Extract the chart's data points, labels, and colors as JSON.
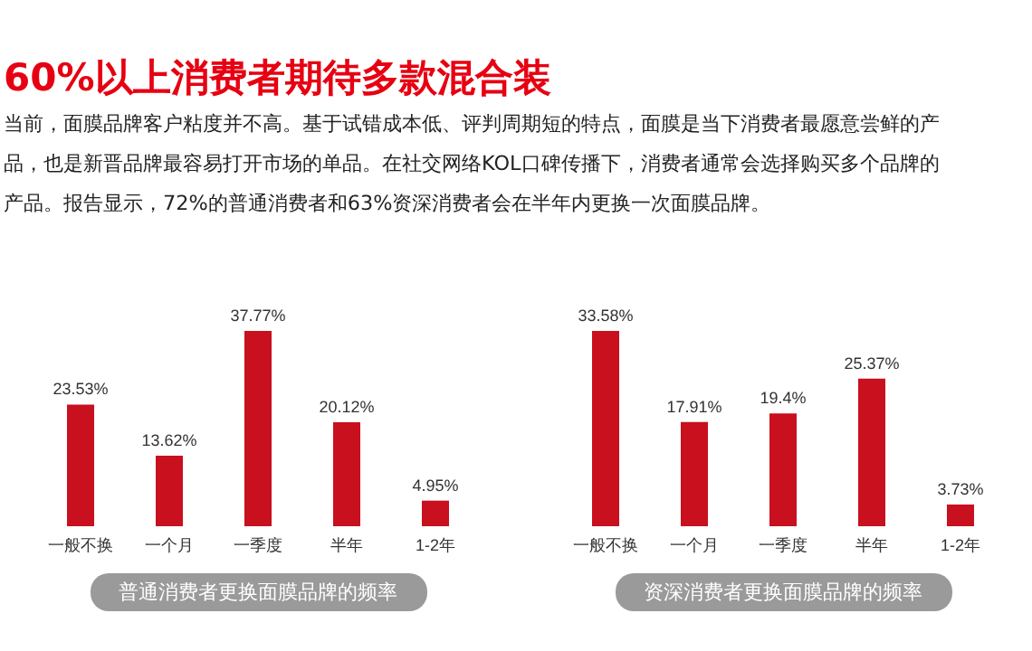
{
  "chart_data": [
    {
      "type": "other",
      "title": "60%以上消费者期待多款混合装",
      "annotations": [
        "当前，面膜品牌客户粘度并不高。基于试错成本低、评判周期短的特点，面膜是当下消费者最愿意尝鲜的产",
        "品，也是新晋品牌最容易打开市场的单品。在社交网络KOL口碑传播下，消费者通常会选择购买多个品牌的",
        "产品。报告显示，72%的普通消费者和63%资深消费者会在半年内更换一次面膜品牌。"
      ]
    },
    {
      "type": "bar",
      "xlabel": "普通消费者更换面膜品牌的频率",
      "categories": [
        "一般不换",
        "一个月",
        "一季度",
        "半年",
        "1-2年"
      ],
      "values": [
        23.53,
        13.62,
        37.77,
        20.12,
        4.95
      ],
      "value_labels": [
        "23.53%",
        "13.62%",
        "37.77%",
        "20.12%",
        "4.95%"
      ],
      "color": "#c8101e"
    },
    {
      "type": "bar",
      "xlabel": "资深消费者更换面膜品牌的频率",
      "categories": [
        "一般不换",
        "一个月",
        "一季度",
        "半年",
        "1-2年"
      ],
      "values": [
        33.58,
        17.91,
        19.4,
        25.37,
        3.73
      ],
      "value_labels": [
        "33.58%",
        "17.91%",
        "19.4%",
        "25.37%",
        "3.73%"
      ],
      "color": "#c8101e"
    }
  ]
}
